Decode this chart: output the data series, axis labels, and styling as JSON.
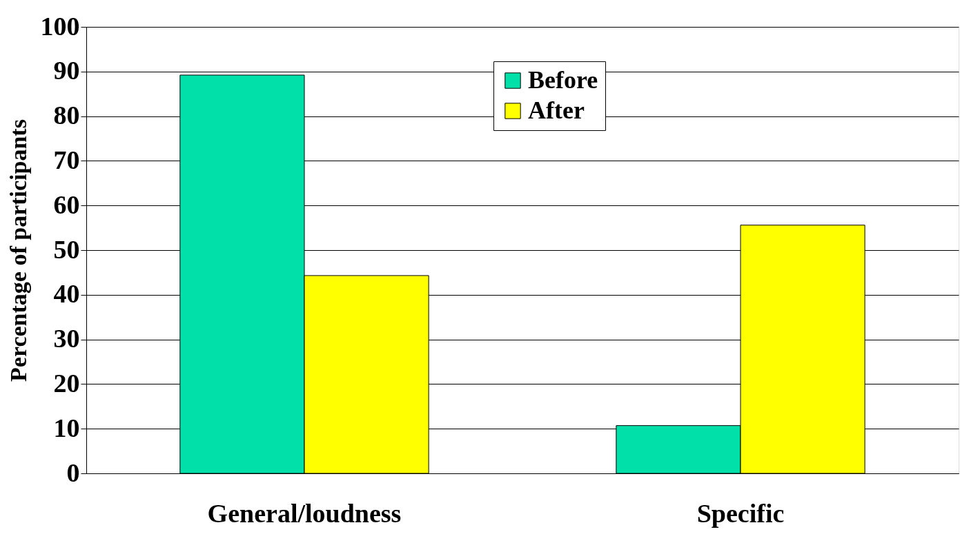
{
  "chart_data": {
    "type": "bar",
    "ylabel": "Percentage of participants",
    "categories": [
      "General/loudness",
      "Specific"
    ],
    "series": [
      {
        "name": "Before",
        "color": "#00e0a8",
        "values": [
          89.2,
          10.7
        ]
      },
      {
        "name": "After",
        "color": "#ffff00",
        "values": [
          44.3,
          55.6
        ]
      }
    ],
    "ylim": [
      0,
      100
    ],
    "yticks": [
      0,
      10,
      20,
      30,
      40,
      50,
      60,
      70,
      80,
      90,
      100
    ],
    "grid": "y",
    "legend": "top"
  }
}
